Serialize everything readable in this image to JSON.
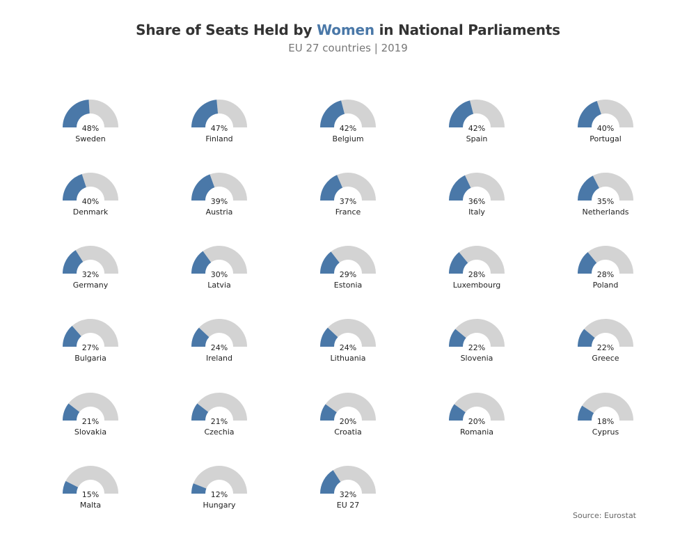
{
  "title": {
    "prefix": "Share of Seats Held by ",
    "highlight": "Women",
    "suffix": " in National Parliaments"
  },
  "subtitle": "EU 27 countries | 2019",
  "source": "Source: Eurostat",
  "colors": {
    "women": "#4a78a8",
    "rest": "#d3d3d3",
    "title_highlight": "#4a78a8"
  },
  "chart_data": {
    "type": "gauge",
    "unit": "%",
    "max": 100,
    "items": [
      {
        "label": "Sweden",
        "value": 48
      },
      {
        "label": "Finland",
        "value": 47
      },
      {
        "label": "Belgium",
        "value": 42
      },
      {
        "label": "Spain",
        "value": 42
      },
      {
        "label": "Portugal",
        "value": 40
      },
      {
        "label": "Denmark",
        "value": 40
      },
      {
        "label": "Austria",
        "value": 39
      },
      {
        "label": "France",
        "value": 37
      },
      {
        "label": "Italy",
        "value": 36
      },
      {
        "label": "Netherlands",
        "value": 35
      },
      {
        "label": "Germany",
        "value": 32
      },
      {
        "label": "Latvia",
        "value": 30
      },
      {
        "label": "Estonia",
        "value": 29
      },
      {
        "label": "Luxembourg",
        "value": 28
      },
      {
        "label": "Poland",
        "value": 28
      },
      {
        "label": "Bulgaria",
        "value": 27
      },
      {
        "label": "Ireland",
        "value": 24
      },
      {
        "label": "Lithuania",
        "value": 24
      },
      {
        "label": "Slovenia",
        "value": 22
      },
      {
        "label": "Greece",
        "value": 22
      },
      {
        "label": "Slovakia",
        "value": 21
      },
      {
        "label": "Czechia",
        "value": 21
      },
      {
        "label": "Croatia",
        "value": 20
      },
      {
        "label": "Romania",
        "value": 20
      },
      {
        "label": "Cyprus",
        "value": 18
      },
      {
        "label": "Malta",
        "value": 15
      },
      {
        "label": "Hungary",
        "value": 12
      },
      {
        "label": "EU 27",
        "value": 32
      }
    ]
  }
}
